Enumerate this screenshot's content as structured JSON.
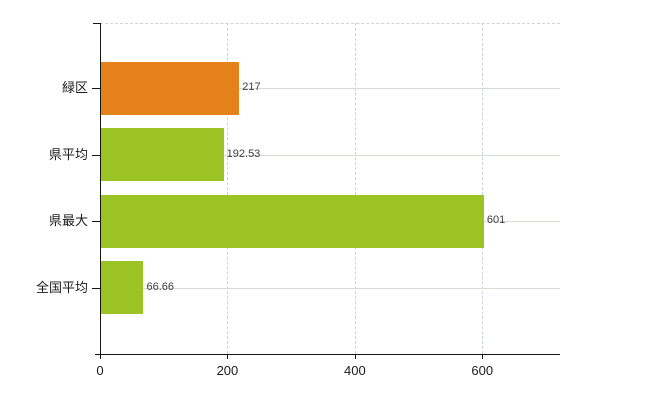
{
  "chart_data": {
    "type": "bar",
    "orientation": "horizontal",
    "title": "",
    "xlabel": "",
    "ylabel": "",
    "categories": [
      "緑区",
      "県平均",
      "県最大",
      "全国平均"
    ],
    "values": [
      217,
      192.53,
      601,
      66.66
    ],
    "value_labels": [
      "217",
      "192.53",
      "601",
      "66.66"
    ],
    "series_colors": [
      "orange",
      "green",
      "green",
      "green"
    ],
    "x_ticks": [
      0,
      200,
      400,
      600
    ],
    "x_tick_labels": [
      "0",
      "200",
      "400",
      "600"
    ],
    "xlim": [
      0,
      722
    ],
    "grid": {
      "horizontal": "solid",
      "vertical": "dashed",
      "top_border": "dashed"
    },
    "legend": "none"
  },
  "colors": {
    "bar_orange_base": "#ee8a1f",
    "bar_orange_dot": "#cf6d12",
    "bar_green_base": "#aacd28",
    "bar_green_dot": "#7cab1c",
    "grid_horizontal": "#d8dcd5",
    "grid_vertical": "#ccd3da",
    "axis": "#151515",
    "category_text": "#1c1c1c",
    "value_text": "#3d3d3d",
    "background": "#ffffff"
  }
}
